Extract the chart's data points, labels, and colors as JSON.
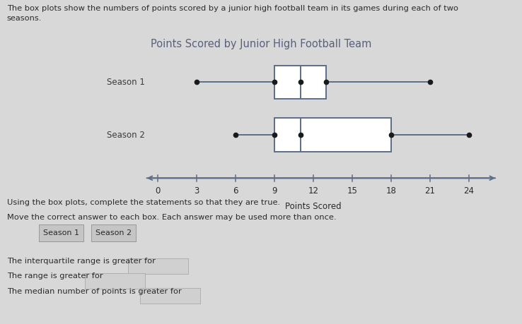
{
  "title": "Points Scored by Junior High Football Team",
  "xlabel": "Points Scored",
  "season1": {
    "label": "Season 1",
    "min": 3,
    "q1": 9,
    "median": 11,
    "q3": 13,
    "max": 21
  },
  "season2": {
    "label": "Season 2",
    "min": 6,
    "q1": 9,
    "median": 11,
    "q3": 18,
    "max": 24
  },
  "axis_ticks": [
    0,
    3,
    6,
    9,
    12,
    15,
    18,
    21,
    24
  ],
  "axis_min": -1.5,
  "axis_max": 26.5,
  "box_facecolor": "white",
  "box_edgecolor": "#5b6e8a",
  "line_color": "#5b6e8a",
  "dot_color": "#1a1a1a",
  "background_color": "#d8d8d8",
  "header_text_line1": "The box plots show the numbers of points scored by a junior high football team in its games during each of two",
  "header_text_line2": "seasons.",
  "statement1": "The interquartile range is greater for",
  "statement2": "The range is greater for",
  "statement3": "The median number of points is greater for",
  "season_button1": "Season 1",
  "season_button2": "Season 2",
  "title_color": "#5a607a",
  "text_color": "#2a2a2a",
  "label_color": "#3a3a3a",
  "using_text": "Using the box plots, complete the statements so that they are true.",
  "move_text": "Move the correct answer to each box. Each answer may be used more than once."
}
